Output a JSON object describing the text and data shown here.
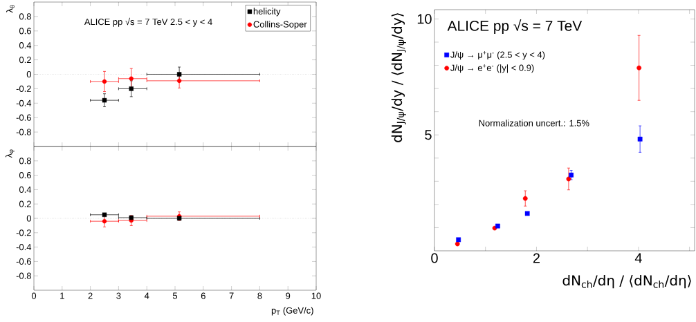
{
  "chart_data": [
    {
      "type": "scatter",
      "ylabel": "λ$_{θ}$",
      "annotations": [
        "ALICE  pp √s = 7 TeV    2.5 < y < 4"
      ],
      "xlim": [
        0,
        10
      ],
      "ylim": [
        -1,
        1
      ],
      "xticks": [
        0,
        1,
        2,
        3,
        4,
        5,
        6,
        7,
        8,
        9,
        10
      ],
      "yticks": [
        -0.8,
        -0.6,
        -0.4,
        -0.2,
        0,
        0.2,
        0.4,
        0.6,
        0.8
      ],
      "tick_labels": "y",
      "legend": "top right",
      "ref_lines": [
        {
          "axis": "y",
          "value": 0,
          "color": "#555555",
          "line_style": "dotted"
        }
      ],
      "series": [
        {
          "name": "helicity",
          "color": "#000000",
          "marker": "square",
          "x": [
            2.5,
            3.45,
            5.15
          ],
          "values": [
            -0.36,
            -0.2,
            0
          ],
          "errors": [
            0.09,
            0.11,
            0.1
          ],
          "xerrors": [
            [
              2,
              3
            ],
            [
              3,
              4
            ],
            [
              4,
              8
            ]
          ]
        },
        {
          "name": "Collins-Soper",
          "color": "#ff0000",
          "marker": "circle",
          "x": [
            2.5,
            3.45,
            5.15
          ],
          "values": [
            -0.1,
            -0.06,
            -0.09
          ],
          "errors": [
            0.14,
            0.14,
            0.1
          ],
          "xerrors": [
            [
              2,
              3
            ],
            [
              3,
              4
            ],
            [
              4,
              8
            ]
          ]
        }
      ]
    },
    {
      "type": "scatter",
      "ylabel": "λ$_{φ}$",
      "xlabel": "p$_{T}$ (GeV/c)",
      "xlim": [
        0,
        10
      ],
      "ylim": [
        -1,
        1
      ],
      "xticks": [
        0,
        1,
        2,
        3,
        4,
        5,
        6,
        7,
        8,
        9,
        10
      ],
      "yticks": [
        -0.8,
        -0.6,
        -0.4,
        -0.2,
        0,
        0.2,
        0.4,
        0.6,
        0.8
      ],
      "ref_lines": [
        {
          "axis": "y",
          "value": 0,
          "color": "#555555",
          "line_style": "dotted"
        }
      ],
      "series": [
        {
          "color": "#000000",
          "marker": "square",
          "x": [
            2.5,
            3.45,
            5.15
          ],
          "values": [
            0.05,
            0.01,
            0
          ],
          "xerrors": [
            [
              2,
              3
            ],
            [
              3,
              4
            ],
            [
              4,
              8
            ]
          ]
        },
        {
          "color": "#ff0000",
          "marker": "circle",
          "x": [
            2.5,
            3.45,
            5.15
          ],
          "values": [
            -0.04,
            -0.03,
            0.03
          ],
          "errors": [
            0.08,
            0.07,
            0.06
          ],
          "xerrors": [
            [
              2,
              3
            ],
            [
              3,
              4
            ],
            [
              4,
              8
            ]
          ]
        }
      ]
    },
    {
      "type": "scatter",
      "xlabel": "dN$_{ch}$/dη / ⟨dN$_{ch}$/dη⟩",
      "ylabel": "dN$_{J/ψ}$/dy / ⟨dN$_{J/ψ}$/dy⟩",
      "annotations": [
        "ALICE pp √s = 7 TeV",
        "Normalization uncert.: 1.5%"
      ],
      "xlim": [
        0,
        5.1
      ],
      "ylim": [
        0,
        10.4
      ],
      "xticks": [
        0,
        {
          "value": 1,
          "label": null
        },
        2,
        {
          "value": 3,
          "label": null
        },
        4,
        {
          "value": 5,
          "label": null
        }
      ],
      "yticks": [
        {
          "value": 1,
          "label": null
        },
        {
          "value": 2,
          "label": null
        },
        {
          "value": 3,
          "label": null
        },
        {
          "value": 4,
          "label": null
        },
        5,
        {
          "value": 6,
          "label": null
        },
        {
          "value": 7,
          "label": null
        },
        {
          "value": 8,
          "label": null
        },
        {
          "value": 9,
          "label": null
        },
        10
      ],
      "legend": "top left",
      "series": [
        {
          "name": "J/ψ → μ$^{+}$μ$^{-}$ (2.5 < y < 4)",
          "color": "#0000ff",
          "marker": "square",
          "x": [
            0.47,
            1.24,
            1.82,
            2.68,
            4.03
          ],
          "values": [
            0.48,
            1.07,
            1.61,
            3.27,
            4.82
          ],
          "errors": [
            null,
            null,
            null,
            0.2,
            0.57
          ]
        },
        {
          "name": "J/ψ → e$^{+}$e$^{-}$ (|y| < 0.9)",
          "color": "#ff0000",
          "marker": "circle",
          "x": [
            0.45,
            1.18,
            1.78,
            2.63,
            4.01
          ],
          "values": [
            0.3,
            0.98,
            2.26,
            3.1,
            7.89
          ],
          "errors": [
            null,
            null,
            0.33,
            0.47,
            1.4
          ]
        }
      ]
    }
  ]
}
